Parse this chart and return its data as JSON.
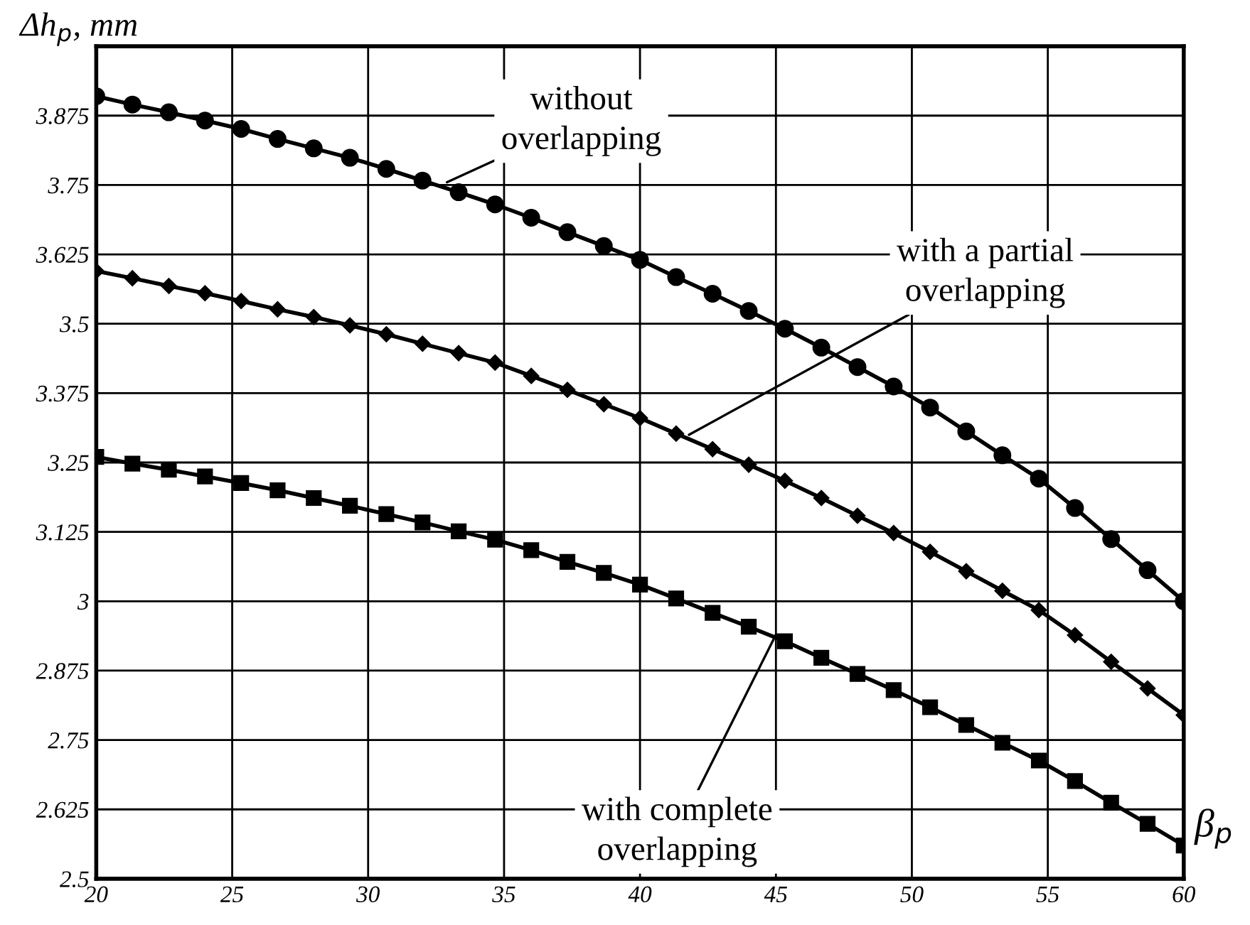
{
  "chart_data": {
    "type": "line",
    "xlabel": "β$_{p}$",
    "ylabel": "Δh$_{p}$, mm",
    "x": [
      20,
      21.33,
      22.67,
      24,
      25.33,
      26.67,
      28,
      29.33,
      30.67,
      32,
      33.33,
      34.67,
      36,
      37.33,
      38.67,
      40,
      41.33,
      42.67,
      44,
      45.33,
      46.67,
      48,
      49.33,
      50.67,
      52,
      53.33,
      54.67,
      56,
      57.33,
      58.67,
      60
    ],
    "series": [
      {
        "color": "#000000",
        "marker": "circle",
        "values": [
          3.91,
          3.895,
          3.881,
          3.866,
          3.851,
          3.833,
          3.816,
          3.799,
          3.779,
          3.758,
          3.737,
          3.715,
          3.691,
          3.665,
          3.64,
          3.615,
          3.584,
          3.554,
          3.523,
          3.491,
          3.457,
          3.422,
          3.387,
          3.349,
          3.306,
          3.263,
          3.221,
          3.168,
          3.112,
          3.056,
          3.0
        ]
      },
      {
        "color": "#000000",
        "marker": "diamond",
        "values": [
          3.595,
          3.582,
          3.568,
          3.555,
          3.541,
          3.526,
          3.512,
          3.497,
          3.481,
          3.464,
          3.447,
          3.43,
          3.406,
          3.381,
          3.355,
          3.33,
          3.302,
          3.274,
          3.246,
          3.217,
          3.186,
          3.154,
          3.123,
          3.089,
          3.054,
          3.019,
          2.984,
          2.939,
          2.891,
          2.843,
          2.795
        ]
      },
      {
        "color": "#000000",
        "marker": "square",
        "values": [
          3.26,
          3.248,
          3.237,
          3.225,
          3.213,
          3.2,
          3.186,
          3.172,
          3.157,
          3.142,
          3.126,
          3.111,
          3.092,
          3.071,
          3.051,
          3.03,
          3.005,
          2.979,
          2.954,
          2.928,
          2.898,
          2.869,
          2.84,
          2.809,
          2.777,
          2.745,
          2.713,
          2.676,
          2.637,
          2.599,
          2.56
        ]
      }
    ],
    "annotations": [
      {
        "text": "without\noverlapping",
        "x": 32.9,
        "y": 3.755
      },
      {
        "text": "with a partial\noverlapping",
        "x": 41.8,
        "y": 3.3
      },
      {
        "text": "with complete\noverlapping",
        "x": 45,
        "y": 2.94
      }
    ],
    "xlim": [
      20,
      60
    ],
    "xticks": [
      20,
      25,
      30,
      35,
      40,
      45,
      50,
      55,
      60
    ],
    "ylim": [
      2.5,
      4.0
    ],
    "yticks": [
      2.5,
      2.625,
      2.75,
      2.875,
      3,
      3.125,
      3.25,
      3.375,
      3.5,
      3.625,
      3.75,
      3.875
    ],
    "grid": true,
    "line_style": "solid"
  }
}
